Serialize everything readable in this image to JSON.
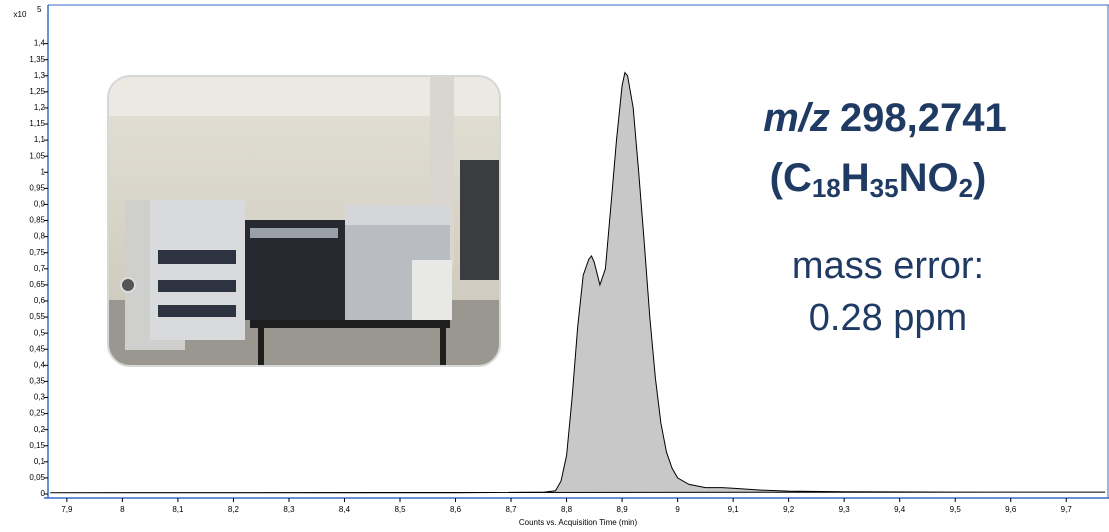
{
  "chart_data": {
    "type": "area",
    "xlabel": "Counts vs. Acquisition Time (min)",
    "y_exponent": {
      "base": "x10",
      "power": "5"
    },
    "color": "#c8c8c8",
    "line_color": "#000000",
    "axis_color": "#3a6cc8",
    "xlim": [
      7.866,
      9.777
    ],
    "ylim": [
      0,
      1.52
    ],
    "xticks": [
      {
        "value": 7.9,
        "label": "7,9"
      },
      8,
      {
        "value": 8.1,
        "label": "8,1"
      },
      {
        "value": 8.2,
        "label": "8,2"
      },
      {
        "value": 8.3,
        "label": "8,3"
      },
      {
        "value": 8.4,
        "label": "8,4"
      },
      {
        "value": 8.5,
        "label": "8,5"
      },
      {
        "value": 8.6,
        "label": "8,6"
      },
      {
        "value": 8.7,
        "label": "8,7"
      },
      {
        "value": 8.8,
        "label": "8,8"
      },
      {
        "value": 8.9,
        "label": "8,9"
      },
      9,
      {
        "value": 9.1,
        "label": "9,1"
      },
      {
        "value": 9.2,
        "label": "9,2"
      },
      {
        "value": 9.3,
        "label": "9,3"
      },
      {
        "value": 9.4,
        "label": "9,4"
      },
      {
        "value": 9.5,
        "label": "9,5"
      },
      {
        "value": 9.6,
        "label": "9,6"
      },
      {
        "value": 9.7,
        "label": "9,7"
      }
    ],
    "yticks": [
      0,
      {
        "value": 0.05,
        "label": "0,05"
      },
      {
        "value": 0.1,
        "label": "0,1"
      },
      {
        "value": 0.15,
        "label": "0,15"
      },
      {
        "value": 0.2,
        "label": "0,2"
      },
      {
        "value": 0.25,
        "label": "0,25"
      },
      {
        "value": 0.3,
        "label": "0,3"
      },
      {
        "value": 0.35,
        "label": "0,35"
      },
      {
        "value": 0.4,
        "label": "0,4"
      },
      {
        "value": 0.45,
        "label": "0,45"
      },
      {
        "value": 0.5,
        "label": "0,5"
      },
      {
        "value": 0.55,
        "label": "0,55"
      },
      {
        "value": 0.6,
        "label": "0,6"
      },
      {
        "value": 0.65,
        "label": "0,65"
      },
      {
        "value": 0.7,
        "label": "0,7"
      },
      {
        "value": 0.75,
        "label": "0,75"
      },
      {
        "value": 0.8,
        "label": "0,8"
      },
      {
        "value": 0.85,
        "label": "0,85"
      },
      {
        "value": 0.9,
        "label": "0,9"
      },
      {
        "value": 0.95,
        "label": "0,95"
      },
      1,
      {
        "value": 1.05,
        "label": "1,05"
      },
      {
        "value": 1.1,
        "label": "1,1"
      },
      {
        "value": 1.15,
        "label": "1,15"
      },
      {
        "value": 1.2,
        "label": "1,2"
      },
      {
        "value": 1.25,
        "label": "1,25"
      },
      {
        "value": 1.3,
        "label": "1,3"
      },
      {
        "value": 1.35,
        "label": "1,35"
      },
      {
        "value": 1.4,
        "label": "1,4"
      }
    ],
    "x": [
      7.87,
      8.0,
      8.2,
      8.4,
      8.6,
      8.7,
      8.76,
      8.78,
      8.79,
      8.8,
      8.81,
      8.82,
      8.83,
      8.84,
      8.845,
      8.85,
      8.86,
      8.87,
      8.88,
      8.89,
      8.9,
      8.905,
      8.91,
      8.92,
      8.93,
      8.94,
      8.95,
      8.96,
      8.97,
      8.98,
      8.99,
      9.0,
      9.02,
      9.05,
      9.08,
      9.1,
      9.15,
      9.2,
      9.3,
      9.5,
      9.7,
      9.77
    ],
    "values": [
      0.004,
      0.004,
      0.004,
      0.004,
      0.004,
      0.005,
      0.006,
      0.01,
      0.04,
      0.12,
      0.3,
      0.52,
      0.68,
      0.73,
      0.74,
      0.72,
      0.65,
      0.7,
      0.9,
      1.1,
      1.27,
      1.31,
      1.3,
      1.2,
      1.0,
      0.78,
      0.55,
      0.36,
      0.22,
      0.13,
      0.08,
      0.05,
      0.03,
      0.02,
      0.02,
      0.018,
      0.012,
      0.009,
      0.007,
      0.006,
      0.006,
      0.006
    ],
    "annotations": {
      "mz_label": "m/z",
      "mz_value": "298,2741",
      "formula": [
        "(C",
        "18",
        "H",
        "35",
        "NO",
        "2",
        ")"
      ],
      "mass_error": [
        "mass error:",
        "0.28 ppm"
      ]
    }
  }
}
